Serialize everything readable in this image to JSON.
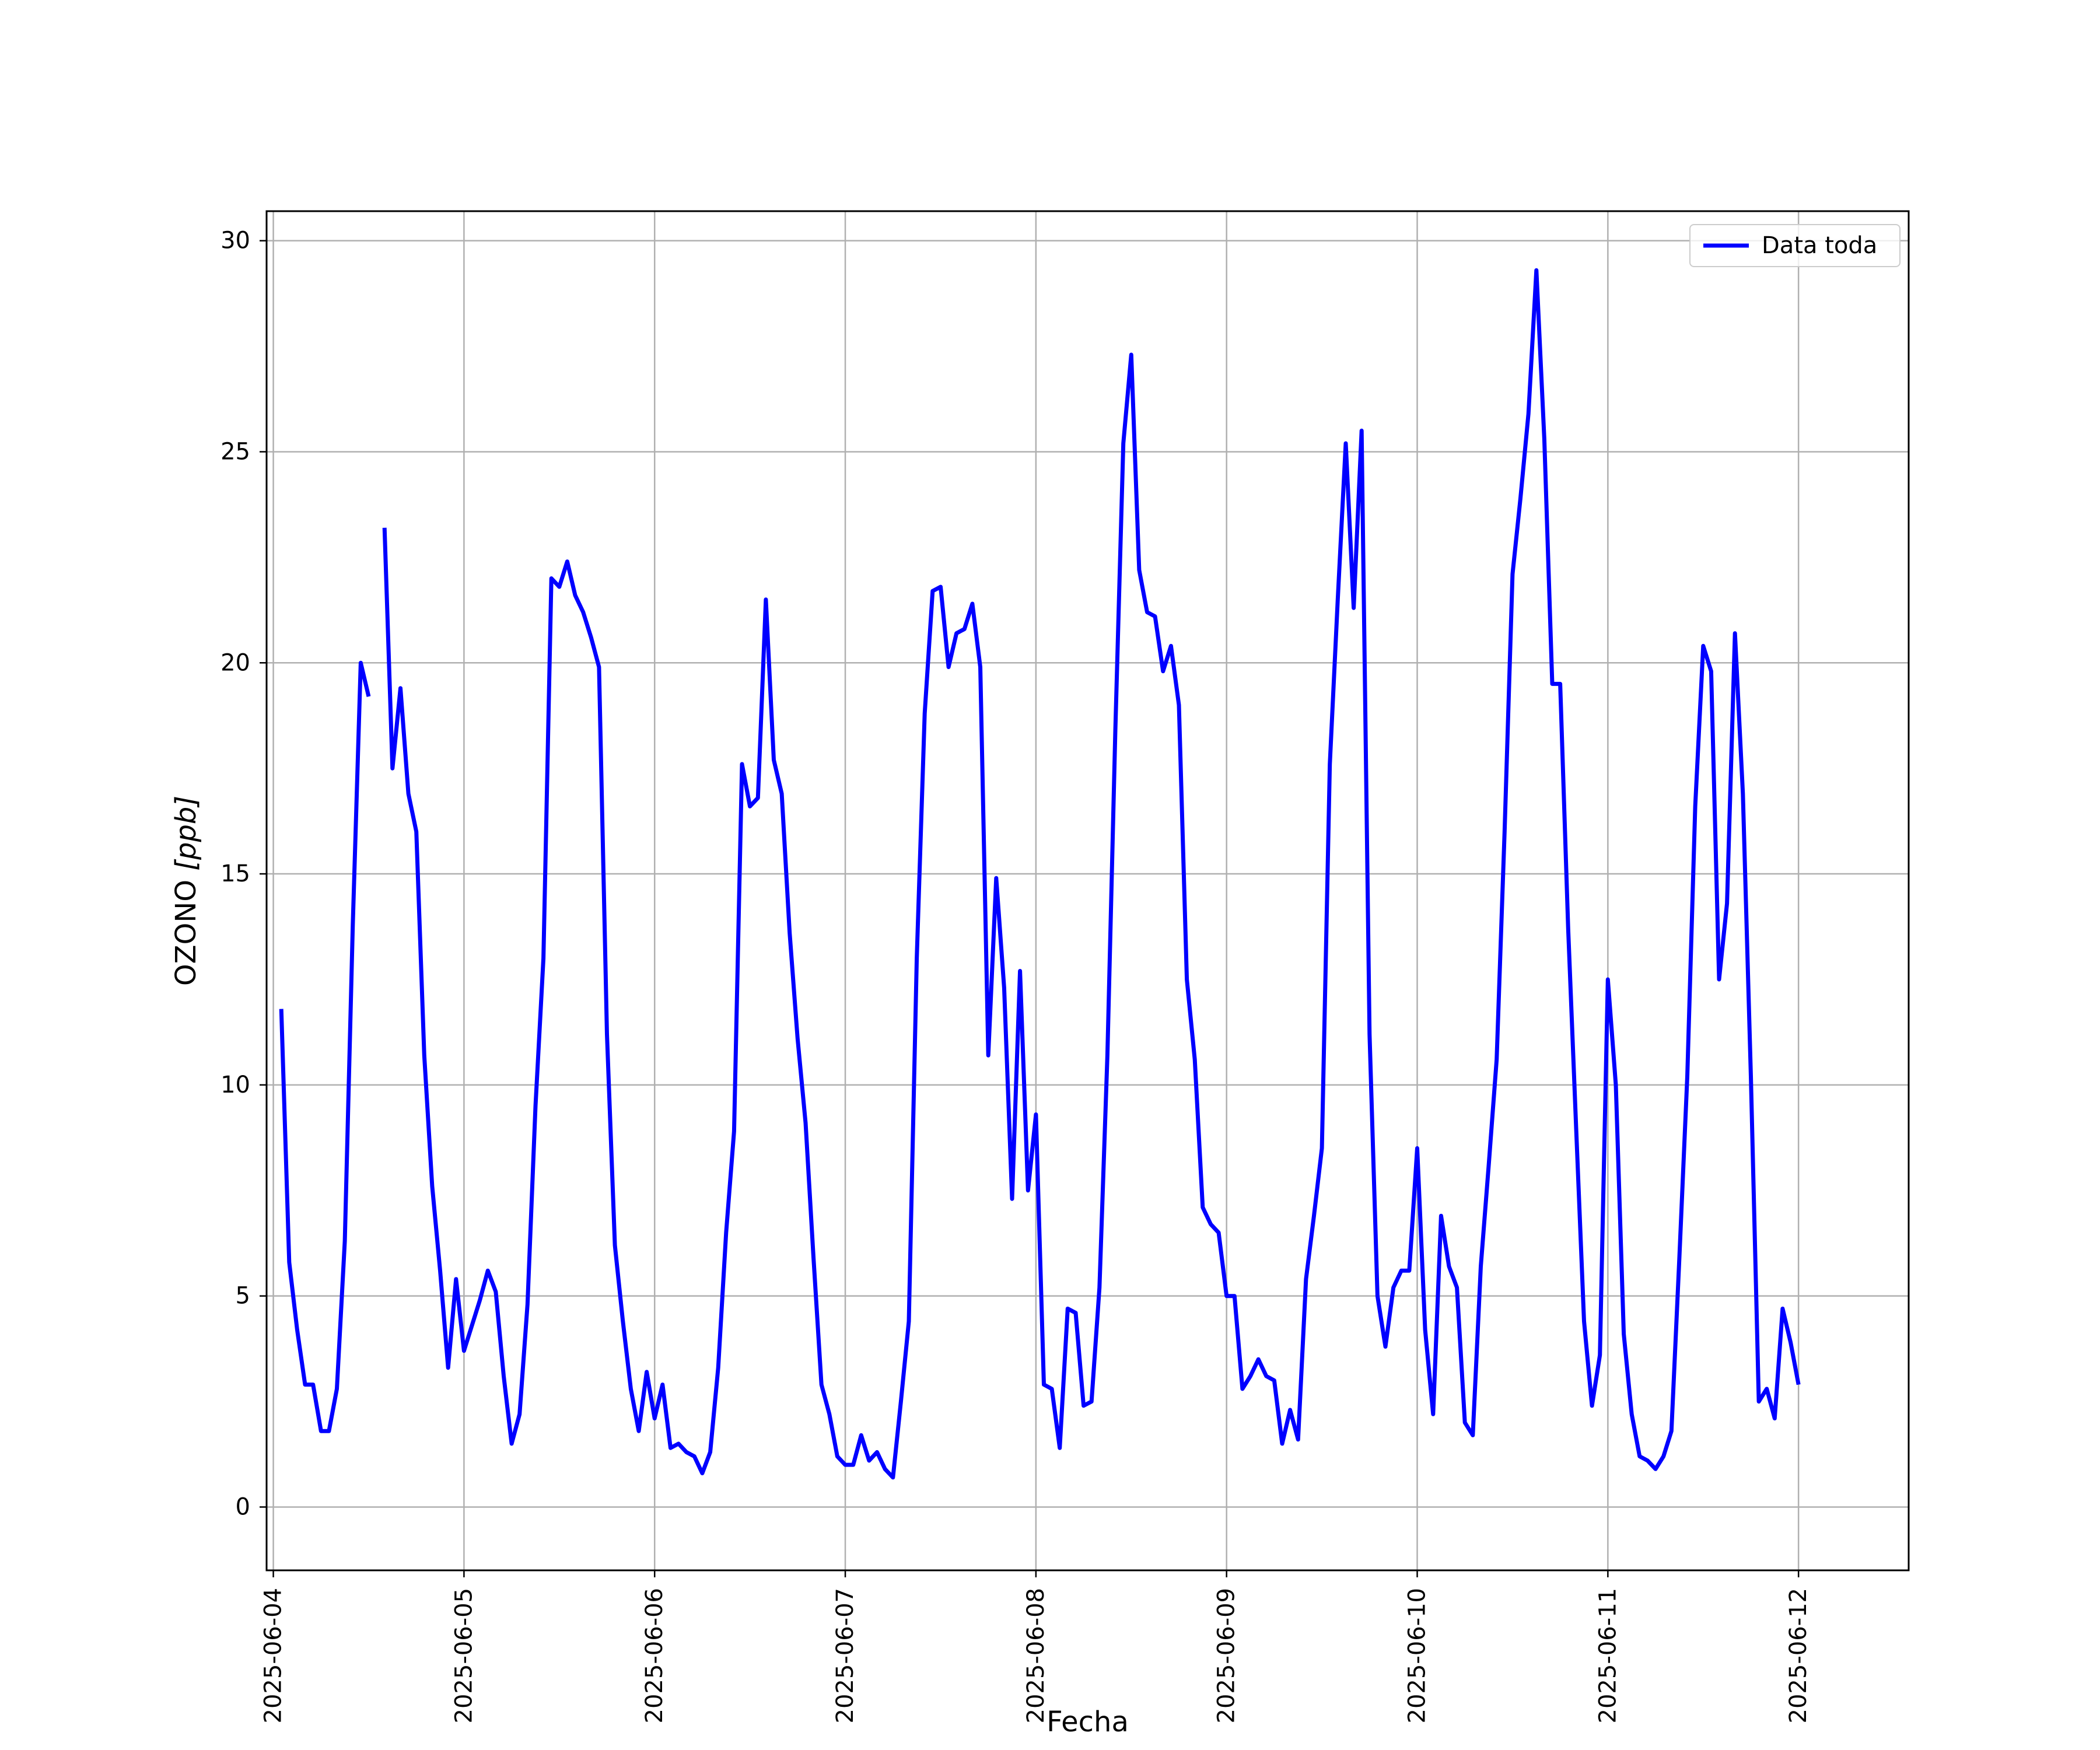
{
  "chart_data": {
    "type": "line",
    "title": "",
    "xlabel": "Fecha",
    "ylabel": "OZONO [ppb]",
    "ylabel_main": "OZONO ",
    "ylabel_unit": "[ppb]",
    "xlim": [
      "2025-06-03T23:09",
      "2025-06-12T13:52"
    ],
    "ylim": [
      -1.5,
      30.7
    ],
    "grid": true,
    "legend_position": "top-right",
    "x_ticks": [
      "2025-06-04",
      "2025-06-05",
      "2025-06-06",
      "2025-06-07",
      "2025-06-08",
      "2025-06-09",
      "2025-06-10",
      "2025-06-11",
      "2025-06-12"
    ],
    "y_ticks": [
      0,
      5,
      10,
      15,
      20,
      25,
      30
    ],
    "series": [
      {
        "name": "Data toda",
        "color": "#0000ff",
        "x": [
          "2025-06-04T01:00",
          "2025-06-04T02:00",
          "2025-06-04T03:00",
          "2025-06-04T04:00",
          "2025-06-04T05:00",
          "2025-06-04T06:00",
          "2025-06-04T07:00",
          "2025-06-04T08:00",
          "2025-06-04T09:00",
          "2025-06-04T10:00",
          "2025-06-04T11:00",
          "2025-06-04T12:00",
          null,
          "2025-06-04T14:00",
          "2025-06-04T15:00",
          "2025-06-04T16:00",
          "2025-06-04T17:00",
          "2025-06-04T18:00",
          "2025-06-04T19:00",
          "2025-06-04T20:00",
          "2025-06-04T21:00",
          "2025-06-04T22:00",
          "2025-06-04T23:00",
          "2025-06-05T00:00",
          "2025-06-05T01:00",
          "2025-06-05T02:00",
          "2025-06-05T03:00",
          "2025-06-05T04:00",
          "2025-06-05T05:00",
          "2025-06-05T06:00",
          "2025-06-05T07:00",
          "2025-06-05T08:00",
          "2025-06-05T09:00",
          "2025-06-05T10:00",
          "2025-06-05T11:00",
          "2025-06-05T12:00",
          "2025-06-05T13:00",
          "2025-06-05T14:00",
          "2025-06-05T15:00",
          "2025-06-05T16:00",
          "2025-06-05T17:00",
          "2025-06-05T18:00",
          "2025-06-05T19:00",
          "2025-06-05T20:00",
          "2025-06-05T21:00",
          "2025-06-05T22:00",
          "2025-06-05T23:00",
          "2025-06-06T00:00",
          "2025-06-06T01:00",
          "2025-06-06T02:00",
          "2025-06-06T03:00",
          "2025-06-06T04:00",
          "2025-06-06T05:00",
          "2025-06-06T06:00",
          "2025-06-06T07:00",
          "2025-06-06T08:00",
          "2025-06-06T09:00",
          "2025-06-06T10:00",
          "2025-06-06T11:00",
          "2025-06-06T12:00",
          "2025-06-06T13:00",
          "2025-06-06T14:00",
          "2025-06-06T15:00",
          "2025-06-06T16:00",
          "2025-06-06T17:00",
          "2025-06-06T18:00",
          "2025-06-06T19:00",
          "2025-06-06T20:00",
          "2025-06-06T21:00",
          "2025-06-06T22:00",
          "2025-06-06T23:00",
          "2025-06-07T00:00",
          "2025-06-07T01:00",
          "2025-06-07T02:00",
          "2025-06-07T03:00",
          "2025-06-07T04:00",
          "2025-06-07T05:00",
          "2025-06-07T06:00",
          "2025-06-07T07:00",
          "2025-06-07T08:00",
          "2025-06-07T09:00",
          "2025-06-07T10:00",
          "2025-06-07T11:00",
          "2025-06-07T12:00",
          "2025-06-07T13:00",
          "2025-06-07T14:00",
          "2025-06-07T15:00",
          "2025-06-07T16:00",
          "2025-06-07T17:00",
          "2025-06-07T18:00",
          "2025-06-07T19:00",
          "2025-06-07T20:00",
          "2025-06-07T21:00",
          "2025-06-07T22:00",
          "2025-06-07T23:00",
          "2025-06-08T00:00",
          "2025-06-08T01:00",
          "2025-06-08T02:00",
          "2025-06-08T03:00",
          "2025-06-08T04:00",
          "2025-06-08T05:00",
          "2025-06-08T06:00",
          "2025-06-08T07:00",
          "2025-06-08T08:00",
          "2025-06-08T09:00",
          "2025-06-08T10:00",
          "2025-06-08T11:00",
          "2025-06-08T12:00",
          "2025-06-08T13:00",
          "2025-06-08T14:00",
          "2025-06-08T15:00",
          "2025-06-08T16:00",
          "2025-06-08T17:00",
          "2025-06-08T18:00",
          "2025-06-08T19:00",
          "2025-06-08T20:00",
          "2025-06-08T21:00",
          "2025-06-08T22:00",
          "2025-06-08T23:00",
          "2025-06-09T00:00",
          "2025-06-09T01:00",
          "2025-06-09T02:00",
          "2025-06-09T03:00",
          "2025-06-09T04:00",
          "2025-06-09T05:00",
          "2025-06-09T06:00",
          "2025-06-09T07:00",
          "2025-06-09T08:00",
          "2025-06-09T09:00",
          "2025-06-09T10:00",
          "2025-06-09T11:00",
          "2025-06-09T12:00",
          "2025-06-09T13:00",
          "2025-06-09T14:00",
          "2025-06-09T15:00",
          "2025-06-09T16:00",
          "2025-06-09T17:00",
          "2025-06-09T18:00",
          "2025-06-09T19:00",
          "2025-06-09T20:00",
          "2025-06-09T21:00",
          "2025-06-09T22:00",
          "2025-06-09T23:00",
          "2025-06-10T00:00",
          "2025-06-10T01:00",
          "2025-06-10T02:00",
          "2025-06-10T03:00",
          "2025-06-10T04:00",
          "2025-06-10T05:00",
          "2025-06-10T06:00",
          "2025-06-10T07:00",
          "2025-06-10T08:00",
          "2025-06-10T09:00",
          "2025-06-10T10:00",
          "2025-06-10T11:00",
          "2025-06-10T12:00",
          "2025-06-10T13:00",
          "2025-06-10T14:00",
          "2025-06-10T15:00",
          "2025-06-10T16:00",
          "2025-06-10T17:00",
          "2025-06-10T18:00",
          "2025-06-10T19:00",
          "2025-06-10T20:00",
          "2025-06-10T21:00",
          "2025-06-10T22:00",
          "2025-06-10T23:00",
          "2025-06-11T00:00",
          "2025-06-11T01:00",
          "2025-06-11T02:00",
          "2025-06-11T03:00",
          "2025-06-11T04:00",
          "2025-06-11T05:00",
          "2025-06-11T06:00",
          "2025-06-11T07:00",
          "2025-06-11T08:00",
          "2025-06-11T09:00",
          "2025-06-11T10:00",
          "2025-06-11T11:00",
          "2025-06-11T12:00",
          "2025-06-11T13:00",
          "2025-06-11T14:00",
          "2025-06-11T15:00",
          "2025-06-11T16:00",
          "2025-06-11T17:00",
          "2025-06-11T18:00",
          "2025-06-11T19:00",
          "2025-06-11T20:00",
          "2025-06-11T21:00",
          "2025-06-11T22:00",
          "2025-06-11T23:00",
          "2025-06-12T00:00"
        ],
        "y": [
          11.8,
          5.8,
          4.2,
          2.9,
          2.9,
          1.8,
          1.8,
          2.8,
          6.3,
          13.8,
          20.0,
          19.2,
          null,
          23.2,
          17.5,
          19.4,
          16.9,
          16.0,
          10.7,
          7.6,
          5.6,
          3.3,
          5.4,
          3.7,
          4.3,
          4.9,
          5.6,
          5.1,
          3.1,
          1.5,
          2.2,
          4.8,
          9.5,
          13.0,
          22.0,
          21.8,
          22.4,
          21.6,
          21.2,
          20.6,
          19.9,
          11.2,
          6.2,
          4.4,
          2.8,
          1.8,
          3.2,
          2.1,
          2.9,
          1.4,
          1.5,
          1.3,
          1.2,
          0.8,
          1.3,
          3.3,
          6.5,
          8.9,
          17.6,
          16.6,
          16.8,
          21.5,
          17.7,
          16.9,
          13.6,
          11.1,
          9.1,
          5.9,
          2.9,
          2.2,
          1.2,
          1.0,
          1.0,
          1.7,
          1.1,
          1.3,
          0.9,
          0.7,
          2.5,
          4.4,
          13.0,
          18.8,
          21.7,
          21.8,
          19.9,
          20.7,
          20.8,
          21.4,
          19.9,
          10.7,
          14.9,
          12.3,
          7.3,
          12.7,
          7.5,
          9.3,
          2.9,
          2.8,
          1.4,
          4.7,
          4.6,
          2.4,
          2.5,
          5.2,
          10.7,
          18.4,
          25.2,
          27.3,
          22.2,
          21.2,
          21.1,
          19.8,
          20.4,
          19.0,
          12.5,
          10.6,
          7.1,
          6.7,
          6.5,
          5.0,
          5.0,
          2.8,
          3.1,
          3.5,
          3.1,
          3.0,
          1.5,
          2.3,
          1.6,
          5.4,
          6.9,
          8.5,
          17.6,
          21.5,
          25.2,
          21.3,
          25.5,
          11.2,
          5.0,
          3.8,
          5.2,
          5.6,
          5.6,
          8.5,
          4.2,
          2.2,
          6.9,
          5.7,
          5.2,
          2.0,
          1.7,
          5.7,
          8.1,
          10.6,
          16.0,
          22.1,
          23.9,
          25.9,
          29.3,
          25.3,
          19.5,
          19.5,
          13.7,
          9.0,
          4.4,
          2.4,
          3.6,
          12.5,
          10.0,
          4.1,
          2.2,
          1.2,
          1.1,
          0.9,
          1.2,
          1.8,
          5.9,
          10.2,
          16.6,
          20.4,
          19.8,
          12.5,
          14.3,
          20.7,
          16.9,
          10.2,
          2.5,
          2.8,
          2.1,
          4.7,
          3.9,
          2.9
        ]
      }
    ]
  }
}
